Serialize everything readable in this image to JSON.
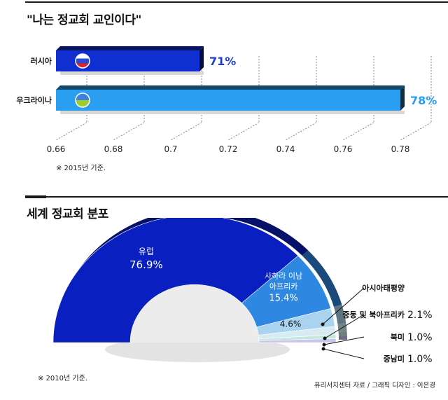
{
  "chart_data": [
    {
      "type": "bar",
      "orientation": "horizontal",
      "title": "\"나는 정교회 교인이다\"",
      "categories": [
        "러시아",
        "우크라이나"
      ],
      "values": [
        0.71,
        0.78
      ],
      "data_labels": [
        "71%",
        "78%"
      ],
      "icons": [
        "russia-flag-icon",
        "ukraine-flag-icon"
      ],
      "colors": [
        "#0f2fd0",
        "#2a9ef0"
      ],
      "text_colors": [
        "#1a3fd6",
        "#2a9ef0"
      ],
      "xlim": [
        0.66,
        0.78
      ],
      "xticks": [
        "0.66",
        "0.68",
        "0.7",
        "0.72",
        "0.74",
        "0.76",
        "0.78"
      ],
      "tick_values": [
        0.66,
        0.68,
        0.7,
        0.72,
        0.74,
        0.76,
        0.78
      ],
      "grid": "dashed vertical",
      "note": "※ 2015년 기준."
    },
    {
      "type": "pie",
      "shape": "half-donut",
      "title": "세계 정교회 분포",
      "slices": [
        {
          "label": "유럽",
          "value": 76.9,
          "value_label": "76.9%",
          "color": "#0a1fc0"
        },
        {
          "label": "사하라 이남\n아프리카",
          "value": 15.4,
          "value_label": "15.4%",
          "color": "#2e87e0"
        },
        {
          "label": "아시아태평양",
          "value": 4.6,
          "value_label": "4.6%",
          "color": "#a9d3ee"
        },
        {
          "label": "중동 및 북아프리카",
          "value": 2.1,
          "value_label": "2.1%",
          "color": "#d6ecf2"
        },
        {
          "label": "북미",
          "value": 1.0,
          "value_label": "1.0%",
          "color": "#c6e6e0"
        },
        {
          "label": "중남미",
          "value": 1.0,
          "value_label": "1.0%",
          "color": "#c8c6ea"
        }
      ],
      "note": "※ 2010년 기준."
    }
  ],
  "credit": "퓨리서치센터 자료 / 그래픽 디자인 : 이은경"
}
